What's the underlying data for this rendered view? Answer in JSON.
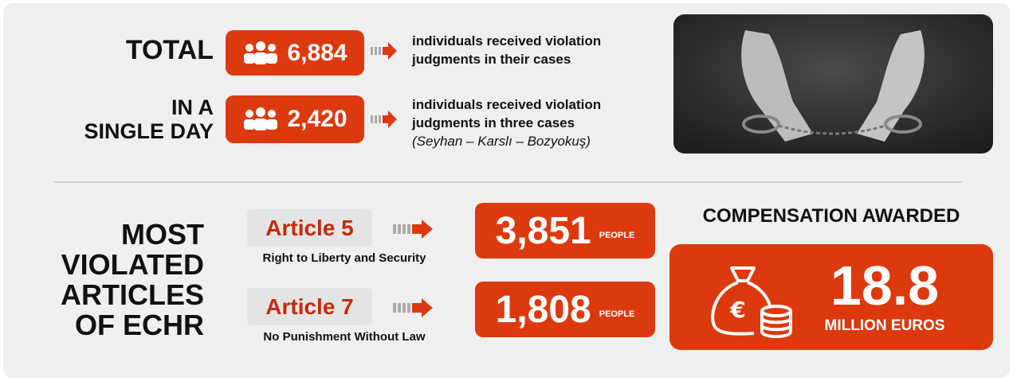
{
  "total": {
    "label": "TOTAL",
    "count": "6,884",
    "text_line1": "individuals received violation",
    "text_line2": "judgments in their cases"
  },
  "single_day": {
    "label_line1": "IN A",
    "label_line2": "SINGLE DAY",
    "count": "2,420",
    "text_line1": "individuals received violation",
    "text_line2": "judgments in three cases",
    "note": "(Seyhan – Karslı – Bozyokuş)"
  },
  "articles": {
    "heading": [
      "MOST",
      "VIOLATED",
      "ARTICLES",
      "OF ECHR"
    ],
    "items": [
      {
        "name": "Article 5",
        "description": "Right to Liberty and Security",
        "count": "3,851",
        "unit": "PEOPLE"
      },
      {
        "name": "Article 7",
        "description": "No Punishment Without Law",
        "count": "1,808",
        "unit": "PEOPLE"
      }
    ]
  },
  "compensation": {
    "title": "COMPENSATION AWARDED",
    "amount": "18.8",
    "unit": "MILLION EUROS"
  }
}
